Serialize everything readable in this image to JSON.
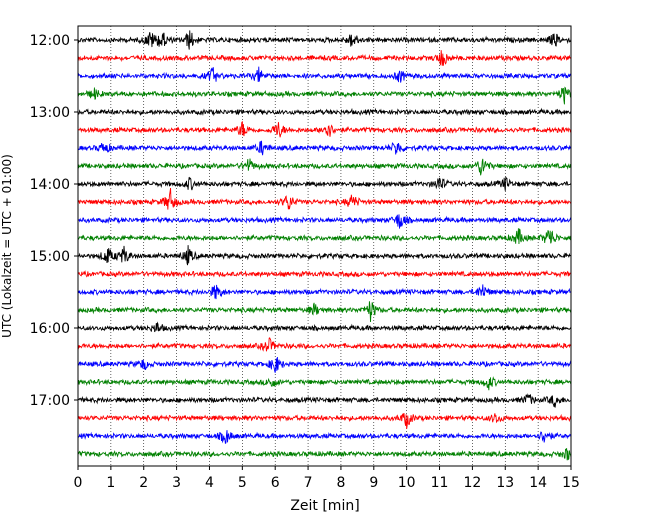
{
  "chart_data": {
    "type": "line",
    "title": "",
    "xlabel": "Zeit  [min]",
    "ylabel": "UTC (Lokalzeit = UTC + 01:00)",
    "xlim": [
      0,
      15
    ],
    "xticks": [
      "0",
      "1",
      "2",
      "3",
      "4",
      "5",
      "6",
      "7",
      "8",
      "9",
      "10",
      "11",
      "12",
      "13",
      "14",
      "15"
    ],
    "grid": "vertical dotted",
    "trace_count": 24,
    "trace_interval_minutes": 15,
    "y_tick_labels": [
      {
        "label": "12:00",
        "trace": 0
      },
      {
        "label": "13:00",
        "trace": 4
      },
      {
        "label": "14:00",
        "trace": 8
      },
      {
        "label": "15:00",
        "trace": 12
      },
      {
        "label": "16:00",
        "trace": 16
      },
      {
        "label": "17:00",
        "trace": 20
      }
    ],
    "trace_colors": [
      "#000000",
      "#ff0000",
      "#0000ff",
      "#008000"
    ],
    "events": [
      {
        "trace": 0,
        "t": 2.2,
        "amp": 1.0
      },
      {
        "trace": 0,
        "t": 2.55,
        "amp": 1.1
      },
      {
        "trace": 0,
        "t": 3.4,
        "amp": 1.1
      },
      {
        "trace": 0,
        "t": 8.35,
        "amp": 1.0
      },
      {
        "trace": 0,
        "t": 14.5,
        "amp": 0.8
      },
      {
        "trace": 1,
        "t": 11.1,
        "amp": 1.1
      },
      {
        "trace": 2,
        "t": 4.1,
        "amp": 0.9
      },
      {
        "trace": 2,
        "t": 5.5,
        "amp": 0.8
      },
      {
        "trace": 2,
        "t": 9.8,
        "amp": 0.7
      },
      {
        "trace": 3,
        "t": 0.5,
        "amp": 0.6
      },
      {
        "trace": 3,
        "t": 14.8,
        "amp": 1.0
      },
      {
        "trace": 5,
        "t": 5.0,
        "amp": 0.9
      },
      {
        "trace": 5,
        "t": 6.1,
        "amp": 1.0
      },
      {
        "trace": 5,
        "t": 7.6,
        "amp": 1.1
      },
      {
        "trace": 6,
        "t": 0.8,
        "amp": 0.7
      },
      {
        "trace": 6,
        "t": 5.6,
        "amp": 0.8
      },
      {
        "trace": 6,
        "t": 9.7,
        "amp": 0.9
      },
      {
        "trace": 7,
        "t": 5.2,
        "amp": 0.8
      },
      {
        "trace": 7,
        "t": 12.3,
        "amp": 1.3
      },
      {
        "trace": 8,
        "t": 3.4,
        "amp": 0.7
      },
      {
        "trace": 8,
        "t": 11.0,
        "amp": 0.9
      },
      {
        "trace": 8,
        "t": 13.0,
        "amp": 0.7
      },
      {
        "trace": 9,
        "t": 2.8,
        "amp": 1.5
      },
      {
        "trace": 9,
        "t": 6.4,
        "amp": 1.0
      },
      {
        "trace": 9,
        "t": 8.35,
        "amp": 0.9
      },
      {
        "trace": 10,
        "t": 9.8,
        "amp": 1.1
      },
      {
        "trace": 11,
        "t": 13.4,
        "amp": 1.0
      },
      {
        "trace": 11,
        "t": 14.35,
        "amp": 1.4
      },
      {
        "trace": 12,
        "t": 0.9,
        "amp": 1.0
      },
      {
        "trace": 12,
        "t": 1.4,
        "amp": 1.0
      },
      {
        "trace": 12,
        "t": 3.35,
        "amp": 1.0
      },
      {
        "trace": 14,
        "t": 4.2,
        "amp": 0.9
      },
      {
        "trace": 14,
        "t": 12.3,
        "amp": 0.9
      },
      {
        "trace": 15,
        "t": 7.2,
        "amp": 0.7
      },
      {
        "trace": 15,
        "t": 8.9,
        "amp": 1.2
      },
      {
        "trace": 16,
        "t": 2.4,
        "amp": 0.6
      },
      {
        "trace": 17,
        "t": 5.8,
        "amp": 0.9
      },
      {
        "trace": 18,
        "t": 6.0,
        "amp": 1.1
      },
      {
        "trace": 18,
        "t": 2.0,
        "amp": 0.6
      },
      {
        "trace": 19,
        "t": 5.9,
        "amp": 0.6
      },
      {
        "trace": 19,
        "t": 12.5,
        "amp": 0.8
      },
      {
        "trace": 20,
        "t": 13.7,
        "amp": 0.7
      },
      {
        "trace": 20,
        "t": 14.5,
        "amp": 0.7
      },
      {
        "trace": 21,
        "t": 10.0,
        "amp": 1.0
      },
      {
        "trace": 21,
        "t": 12.7,
        "amp": 0.6
      },
      {
        "trace": 22,
        "t": 4.5,
        "amp": 0.9
      },
      {
        "trace": 22,
        "t": 14.2,
        "amp": 0.9
      },
      {
        "trace": 23,
        "t": 14.9,
        "amp": 0.7
      }
    ]
  }
}
